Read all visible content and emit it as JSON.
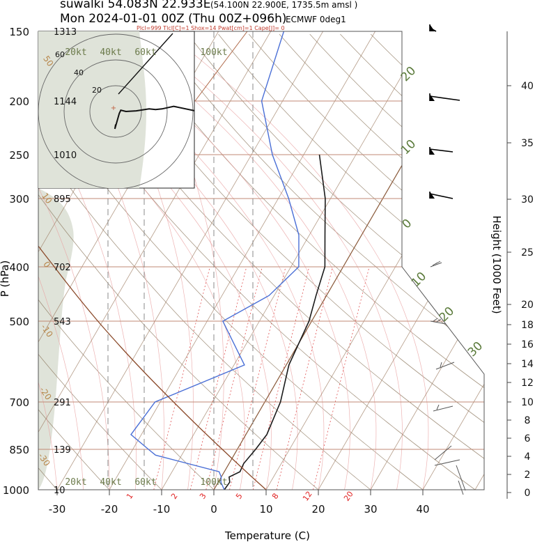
{
  "header": {
    "line1_main": "suwalki 54.083N 22.933E",
    "line1_sub": "(54.100N 22.900E, 1735.5m amsl )",
    "line2_main": "Mon 2024-01-01 00Z (Thu 00Z+096h)",
    "line2_sub": "ECMWF 0deg1",
    "indices": "Plcl=999 Tlcl[C]=1 Shox=14 Pwat[cm]=1 Cape[J]= 0"
  },
  "axes": {
    "xlabel": "Temperature (C)",
    "ylabel": "P (hPa)",
    "y2label": "Height (1000 Feet)"
  },
  "chart_data": {
    "type": "line",
    "x_ticks": [
      -30,
      -20,
      -10,
      0,
      10,
      20,
      30,
      40
    ],
    "pressure_levels": [
      150,
      200,
      250,
      300,
      400,
      500,
      700,
      850,
      1000
    ],
    "height_labels": [
      "1313",
      "1144",
      "1010",
      "895",
      "702",
      "543",
      "291",
      "139",
      "10"
    ],
    "height_ticks_kft": [
      0,
      2,
      4,
      6,
      8,
      10,
      12,
      14,
      16,
      18,
      20,
      25,
      30,
      35,
      40
    ],
    "mixing_ratio_labels": [
      "1",
      "2",
      "3",
      "5",
      "8",
      "12",
      "20"
    ],
    "dry_adiabat_labels": [
      "20",
      "10",
      "0",
      "10",
      "20",
      "30"
    ],
    "left_temp_labels": [
      "50",
      "10",
      "0",
      "-10",
      "-20",
      "-30"
    ],
    "hodo_ring_labels": [
      "20",
      "40",
      "60"
    ],
    "hodo_speed_labels": [
      "20kt",
      "40kt",
      "60kt",
      "100kt"
    ],
    "series": [
      {
        "color": "#1a1a1a",
        "points": [
          [
            1000,
            2.0
          ],
          [
            970,
            2.2
          ],
          [
            950,
            1.5
          ],
          [
            930,
            3.0
          ],
          [
            900,
            2.8
          ],
          [
            850,
            3.5
          ],
          [
            800,
            4.0
          ],
          [
            700,
            3.0
          ],
          [
            600,
            0.5
          ],
          [
            500,
            -0.5
          ],
          [
            450,
            -2.0
          ],
          [
            400,
            -3.5
          ],
          [
            350,
            -7.0
          ],
          [
            300,
            -11.0
          ],
          [
            250,
            -17.0
          ]
        ]
      },
      {
        "color": "#4a6fd6",
        "points": [
          [
            1000,
            2.0
          ],
          [
            970,
            0.5
          ],
          [
            950,
            0.0
          ],
          [
            930,
            -1.0
          ],
          [
            870,
            -15.0
          ],
          [
            850,
            -17.0
          ],
          [
            800,
            -22.0
          ],
          [
            700,
            -21.0
          ],
          [
            600,
            -8.0
          ],
          [
            500,
            -17.0
          ],
          [
            450,
            -11.0
          ],
          [
            400,
            -8.5
          ],
          [
            350,
            -12.0
          ],
          [
            300,
            -18.0
          ],
          [
            250,
            -26.0
          ],
          [
            200,
            -34.0
          ],
          [
            150,
            -37.5
          ]
        ]
      }
    ],
    "hodograph_points": [
      [
        0.0,
        -10.0
      ],
      [
        -0.6,
        -13.5
      ],
      [
        2.8,
        -1.5
      ],
      [
        4.0,
        1.0
      ],
      [
        8.0,
        0.0
      ],
      [
        16.0,
        0.5
      ],
      [
        26.0,
        2.0
      ],
      [
        31.0,
        1.5
      ],
      [
        36.0,
        2.0
      ],
      [
        45.0,
        4.0
      ],
      [
        64.0,
        0.0
      ],
      [
        74.0,
        9.0
      ]
    ]
  }
}
